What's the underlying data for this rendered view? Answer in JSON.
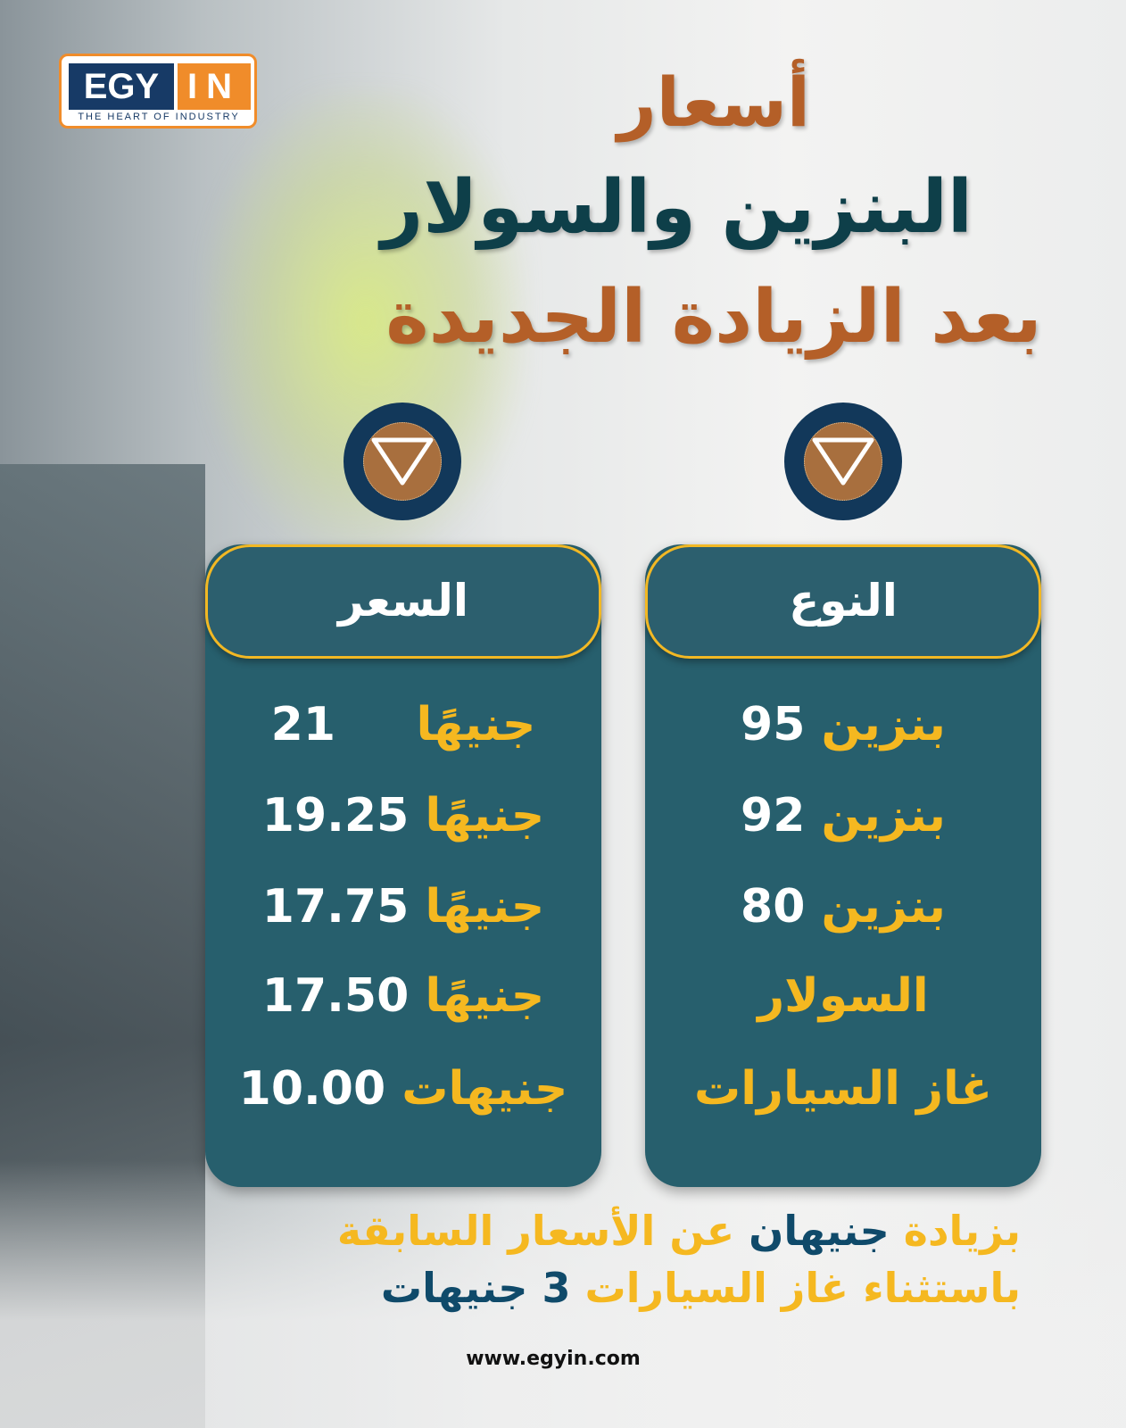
{
  "logo": {
    "left": "EGY",
    "right": "IN",
    "tagline": "THE HEART OF INDUSTRY"
  },
  "title": {
    "line1": "أسعار",
    "line2": "البنزين والسولار",
    "line3": "بعد الزيادة الجديدة"
  },
  "icons": [
    "triangle-down-icon",
    "triangle-down-icon"
  ],
  "table": {
    "type_header": "النوع",
    "price_header": "السعر",
    "rows": [
      {
        "type": "بنزين",
        "type_num": "95",
        "price": "21",
        "unit": "جنيهًا"
      },
      {
        "type": "بنزين",
        "type_num": "92",
        "price": "19.25",
        "unit": "جنيهًا"
      },
      {
        "type": "بنزين",
        "type_num": "80",
        "price": "17.75",
        "unit": "جنيهًا"
      },
      {
        "type": "السولار",
        "type_num": "",
        "price": "17.50",
        "unit": "جنيهًا"
      },
      {
        "type": "غاز السيارات",
        "type_num": "",
        "price": "10.00",
        "unit": "جنيهات"
      }
    ]
  },
  "footer": {
    "line1": {
      "a": "بزيادة",
      "b": "جنيهان",
      "c": "عن الأسعار السابقة"
    },
    "line2": {
      "a": "باستثناء غاز السيارات",
      "b": "3 جنيهات"
    },
    "website": "www.egyin.com"
  },
  "colors": {
    "brown": "#b45f28",
    "teal": "#275f6d",
    "gold": "#f5b820",
    "navy": "#12385a"
  }
}
